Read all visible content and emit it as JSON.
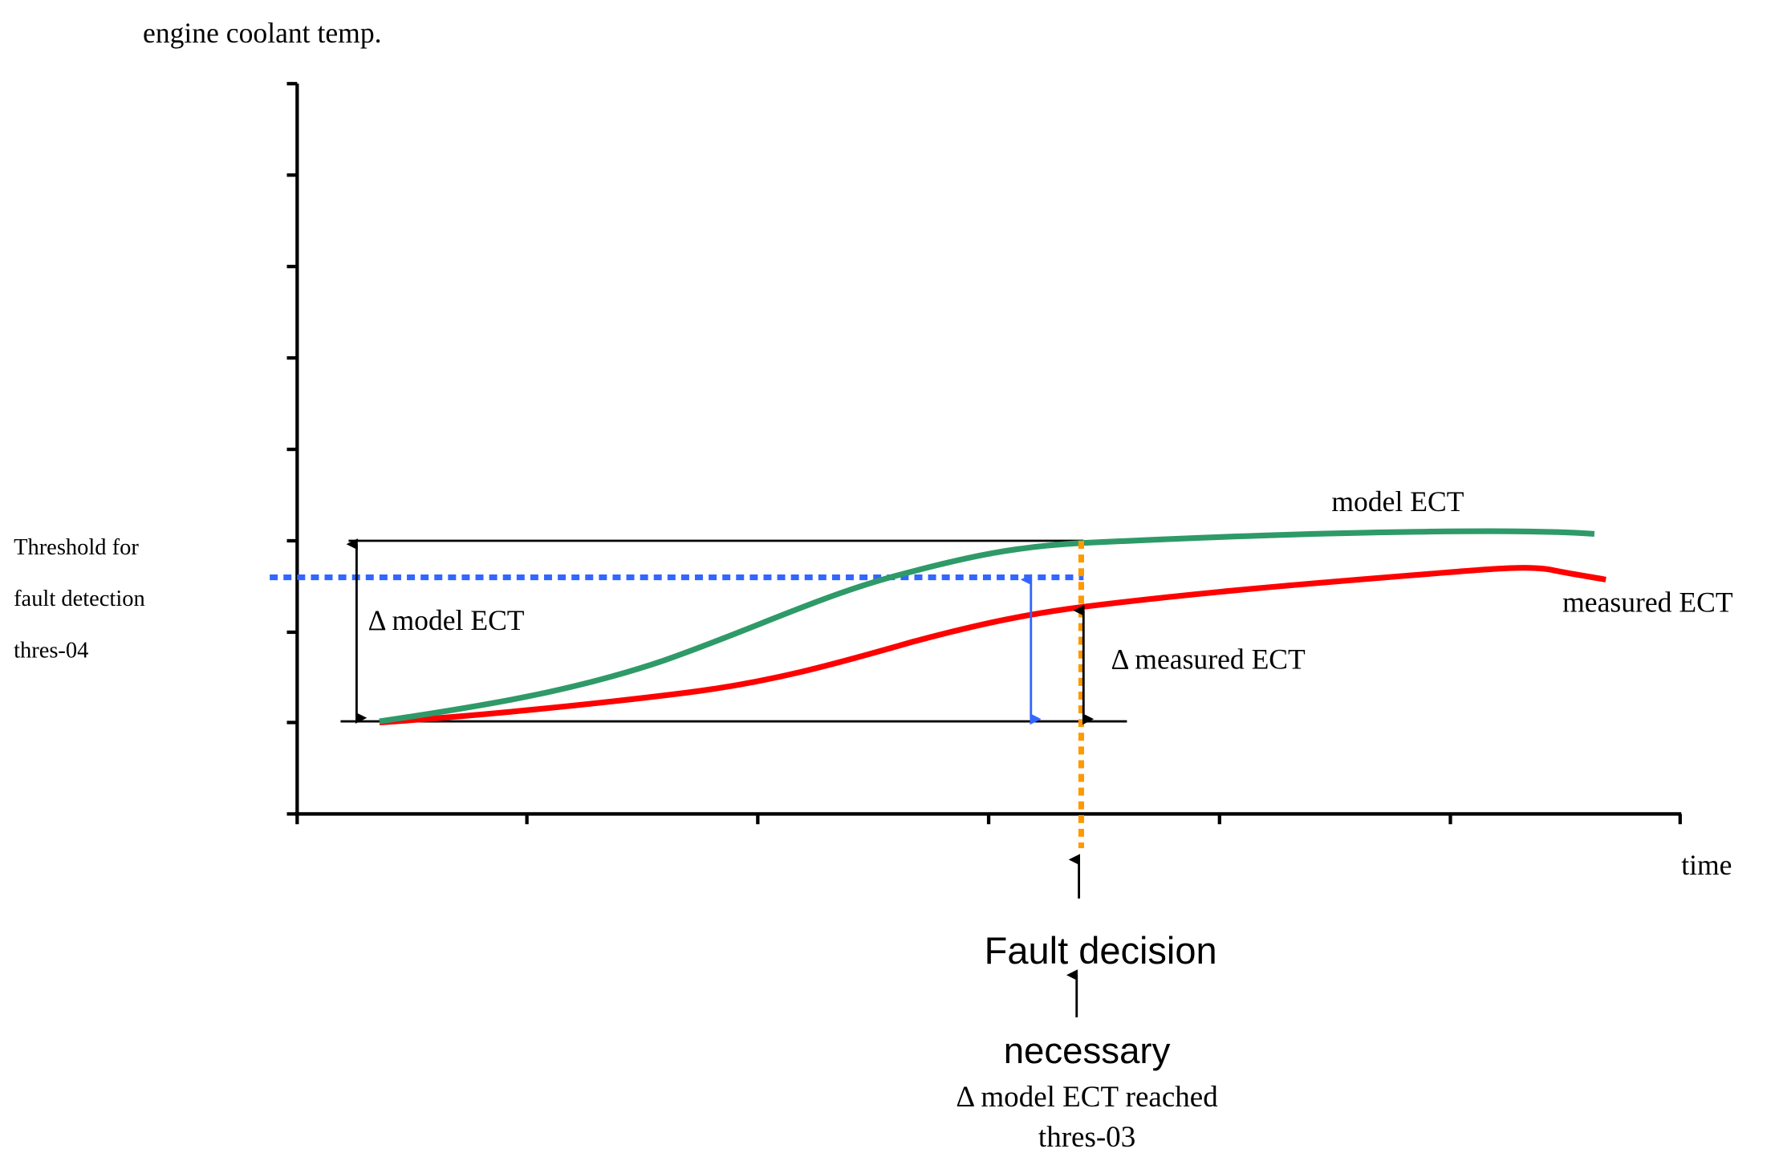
{
  "axes": {
    "y_label": "engine coolant temp.",
    "x_label": "time"
  },
  "series": {
    "model": {
      "label": "model ECT",
      "color": "#2e9a68"
    },
    "measured": {
      "label": "measured ECT",
      "color": "#ff0000"
    }
  },
  "threshold": {
    "lines": [
      "Threshold for",
      "fault detection",
      "thres-04"
    ],
    "color": "#3366ff"
  },
  "annotations": {
    "delta_model": "Δ model ECT",
    "delta_measured": "Δ measured ECT",
    "fault_decision": "Fault decision",
    "necessary": "necessary",
    "reached_line1": "Δ model ECT reached",
    "reached_line2": "thres-03",
    "decision_line_color": "#ff9900"
  }
}
